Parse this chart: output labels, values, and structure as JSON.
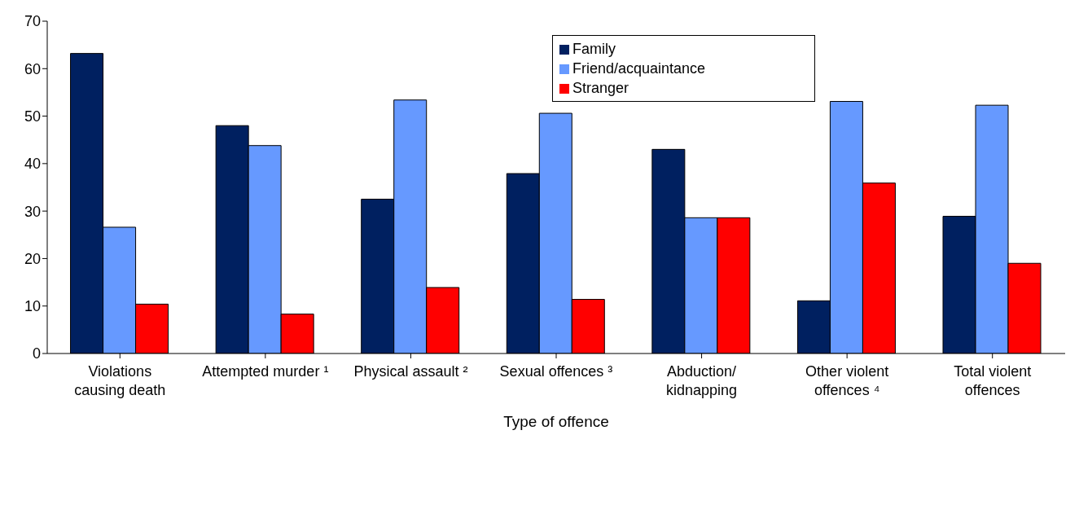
{
  "chart_data": {
    "type": "bar",
    "xlabel": "Type of offence",
    "categories": [
      "Violations causing death",
      "Attempted murder ¹",
      "Physical assault ²",
      "Sexual offences ³",
      "Abduction/ kidnapping",
      "Other violent offences ⁴",
      "Total violent offences"
    ],
    "series": [
      {
        "name": "Family",
        "color": "#002060",
        "values": [
          63.2,
          48.0,
          32.5,
          37.9,
          43.0,
          11.1,
          28.9
        ]
      },
      {
        "name": "Friend/acquaintance",
        "color": "#6699ff",
        "values": [
          26.6,
          43.8,
          53.4,
          50.6,
          28.6,
          53.1,
          52.3
        ]
      },
      {
        "name": "Stranger",
        "color": "#ff0000",
        "values": [
          10.4,
          8.3,
          13.9,
          11.4,
          28.6,
          35.9,
          19.0
        ]
      }
    ],
    "ylim": [
      0,
      70
    ],
    "yticks": [
      0,
      10,
      20,
      30,
      40,
      50,
      60,
      70
    ],
    "legend": "top"
  }
}
